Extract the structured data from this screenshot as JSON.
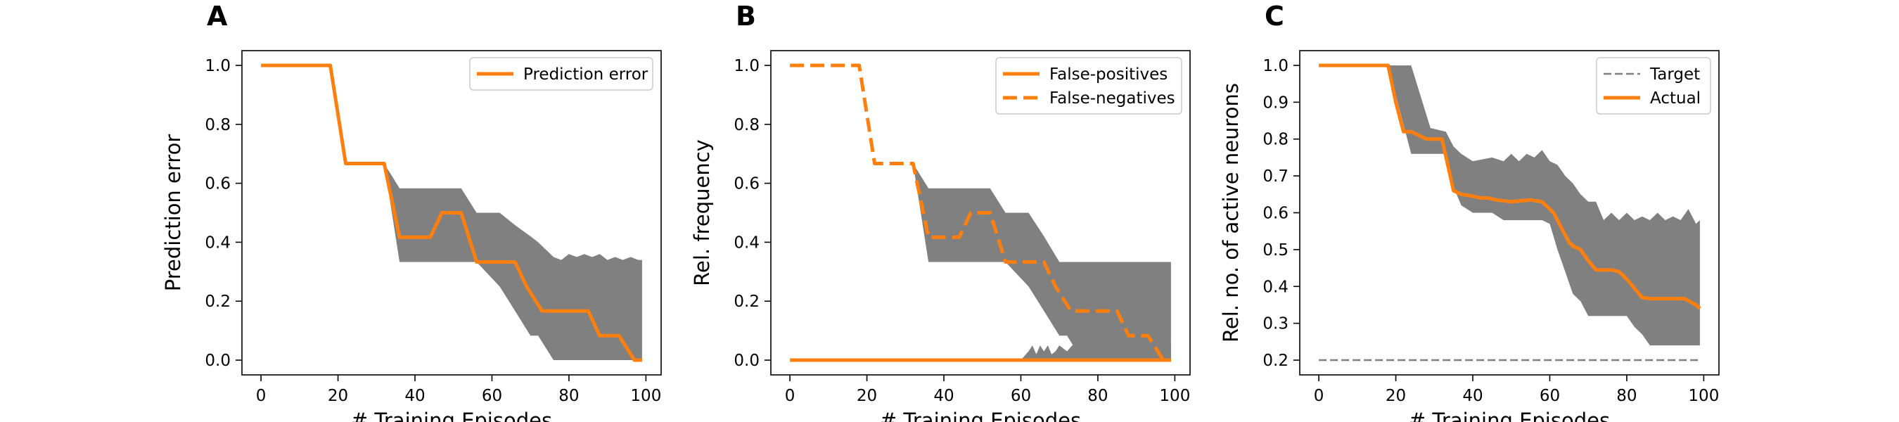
{
  "colors": {
    "orange": "#ff7f0e",
    "band": "#808080",
    "target": "#808080",
    "axis": "#000000"
  },
  "chart_data": [
    {
      "type": "line",
      "panel_label": "A",
      "xlabel": "# Training Episodes",
      "ylabel": "Prediction error",
      "xlim": [
        -4.95,
        103.95
      ],
      "ylim": [
        -0.05,
        1.05
      ],
      "xticks": [
        0,
        20,
        40,
        60,
        80,
        100
      ],
      "yticks": [
        0.0,
        0.2,
        0.4,
        0.6,
        0.8,
        1.0
      ],
      "ytick_labels": [
        "0.0",
        "0.2",
        "0.4",
        "0.6",
        "0.8",
        "1.0"
      ],
      "legend": {
        "position": "top-right",
        "entries": [
          {
            "label": "Prediction error",
            "style": "solid"
          }
        ]
      },
      "series": [
        {
          "name": "Prediction error",
          "style": "solid",
          "x": [
            0,
            18,
            22,
            32,
            36,
            38,
            44,
            47,
            52,
            56,
            66,
            69,
            73,
            85,
            88,
            93,
            97,
            99
          ],
          "y": [
            1.0,
            1.0,
            0.667,
            0.667,
            0.417,
            0.417,
            0.417,
            0.5,
            0.5,
            0.333,
            0.333,
            0.25,
            0.167,
            0.167,
            0.083,
            0.083,
            0.0,
            0.0
          ]
        }
      ],
      "bands": [
        {
          "x": [
            32,
            36,
            52,
            56,
            62,
            66,
            70,
            72,
            76,
            78,
            80,
            82,
            84,
            86,
            88,
            90,
            92,
            94,
            96,
            98,
            99
          ],
          "upper": [
            0.667,
            0.583,
            0.583,
            0.5,
            0.5,
            0.458,
            0.42,
            0.4,
            0.35,
            0.34,
            0.36,
            0.35,
            0.36,
            0.35,
            0.36,
            0.34,
            0.35,
            0.34,
            0.35,
            0.34,
            0.34
          ],
          "lower": [
            0.667,
            0.333,
            0.333,
            0.333,
            0.25,
            0.167,
            0.083,
            0.083,
            0.0,
            0.0,
            0.0,
            0.0,
            0.0,
            0.0,
            0.0,
            0.0,
            0.0,
            0.0,
            0.0,
            0.0,
            0.0
          ]
        }
      ]
    },
    {
      "type": "line",
      "panel_label": "B",
      "xlabel": "# Training Episodes",
      "ylabel": "Rel. frequency",
      "xlim": [
        -4.95,
        103.95
      ],
      "ylim": [
        -0.05,
        1.05
      ],
      "xticks": [
        0,
        20,
        40,
        60,
        80,
        100
      ],
      "yticks": [
        0.0,
        0.2,
        0.4,
        0.6,
        0.8,
        1.0
      ],
      "ytick_labels": [
        "0.0",
        "0.2",
        "0.4",
        "0.6",
        "0.8",
        "1.0"
      ],
      "legend": {
        "position": "top-right",
        "entries": [
          {
            "label": "False-positives",
            "style": "solid"
          },
          {
            "label": "False-negatives",
            "style": "dashed"
          }
        ]
      },
      "series": [
        {
          "name": "False-positives",
          "style": "solid",
          "x": [
            0,
            99
          ],
          "y": [
            0.0,
            0.0
          ]
        },
        {
          "name": "False-negatives",
          "style": "dashed",
          "x": [
            0,
            18,
            22,
            32,
            36,
            38,
            44,
            47,
            52,
            56,
            66,
            69,
            73,
            85,
            88,
            93,
            97,
            99
          ],
          "y": [
            1.0,
            1.0,
            0.667,
            0.667,
            0.417,
            0.417,
            0.417,
            0.5,
            0.5,
            0.333,
            0.333,
            0.25,
            0.167,
            0.167,
            0.083,
            0.083,
            0.0,
            0.0
          ]
        }
      ],
      "bands": [
        {
          "x": [
            32,
            36,
            52,
            56,
            62,
            66,
            70,
            72,
            76,
            99
          ],
          "upper": [
            0.667,
            0.583,
            0.583,
            0.5,
            0.5,
            0.42,
            0.333,
            0.333,
            0.333,
            0.333
          ],
          "lower": [
            0.667,
            0.333,
            0.333,
            0.333,
            0.25,
            0.167,
            0.083,
            0.083,
            0.0,
            0.0
          ]
        },
        {
          "x": [
            60,
            62,
            63,
            64,
            65,
            66,
            67,
            68,
            69,
            70,
            72,
            74,
            99
          ],
          "upper": [
            0.0,
            0.03,
            0.05,
            0.02,
            0.05,
            0.03,
            0.05,
            0.02,
            0.03,
            0.05,
            0.03,
            0.06,
            0.06
          ],
          "lower": [
            0.0,
            0.0,
            0.0,
            0.0,
            0.0,
            0.0,
            0.0,
            0.0,
            0.0,
            0.0,
            0.0,
            0.0,
            0.0
          ]
        }
      ]
    },
    {
      "type": "line",
      "panel_label": "C",
      "xlabel": "# Training Episodes",
      "ylabel": "Rel. no. of active neurons",
      "xlim": [
        -4.95,
        103.95
      ],
      "ylim": [
        0.16,
        1.04
      ],
      "xticks": [
        0,
        20,
        40,
        60,
        80,
        100
      ],
      "yticks": [
        0.2,
        0.3,
        0.4,
        0.5,
        0.6,
        0.7,
        0.8,
        0.9,
        1.0
      ],
      "ytick_labels": [
        "0.2",
        "0.3",
        "0.4",
        "0.5",
        "0.6",
        "0.7",
        "0.8",
        "0.9",
        "1.0"
      ],
      "legend": {
        "position": "top-right",
        "entries": [
          {
            "label": "Target",
            "style": "dashed-thin"
          },
          {
            "label": "Actual",
            "style": "solid"
          }
        ]
      },
      "series": [
        {
          "name": "Target",
          "style": "dashed-thin",
          "x": [
            0,
            99
          ],
          "y": [
            0.2,
            0.2
          ]
        },
        {
          "name": "Actual",
          "style": "solid",
          "x": [
            0,
            18,
            20,
            22,
            24,
            26,
            28,
            32,
            35,
            37,
            40,
            42,
            44,
            46,
            50,
            55,
            58,
            60,
            61,
            62,
            63,
            64,
            65,
            66,
            67,
            68,
            70,
            72,
            76,
            78,
            80,
            84,
            86,
            90,
            95,
            98,
            99
          ],
          "y": [
            1.0,
            1.0,
            0.9,
            0.82,
            0.82,
            0.81,
            0.8,
            0.8,
            0.66,
            0.65,
            0.645,
            0.64,
            0.64,
            0.635,
            0.63,
            0.635,
            0.63,
            0.61,
            0.6,
            0.58,
            0.56,
            0.54,
            0.52,
            0.51,
            0.505,
            0.5,
            0.47,
            0.445,
            0.445,
            0.44,
            0.42,
            0.37,
            0.367,
            0.367,
            0.367,
            0.35,
            0.34
          ]
        }
      ],
      "bands": [
        {
          "x": [
            18,
            24,
            29,
            33,
            35,
            37,
            40,
            45,
            48,
            50,
            52,
            54,
            56,
            58,
            60,
            62,
            64,
            66,
            68,
            70,
            72,
            74,
            76,
            78,
            80,
            82,
            84,
            86,
            88,
            90,
            92,
            94,
            96,
            98,
            99
          ],
          "upper": [
            1.0,
            1.0,
            0.83,
            0.82,
            0.78,
            0.76,
            0.74,
            0.75,
            0.74,
            0.76,
            0.74,
            0.76,
            0.75,
            0.77,
            0.74,
            0.73,
            0.7,
            0.68,
            0.65,
            0.63,
            0.63,
            0.58,
            0.6,
            0.58,
            0.6,
            0.58,
            0.59,
            0.58,
            0.6,
            0.58,
            0.59,
            0.58,
            0.61,
            0.57,
            0.58
          ],
          "lower": [
            1.0,
            0.76,
            0.76,
            0.76,
            0.67,
            0.62,
            0.6,
            0.6,
            0.58,
            0.58,
            0.58,
            0.58,
            0.58,
            0.58,
            0.57,
            0.5,
            0.44,
            0.38,
            0.36,
            0.32,
            0.32,
            0.32,
            0.32,
            0.32,
            0.32,
            0.29,
            0.27,
            0.24,
            0.24,
            0.24,
            0.24,
            0.24,
            0.24,
            0.24,
            0.24
          ]
        }
      ]
    }
  ]
}
